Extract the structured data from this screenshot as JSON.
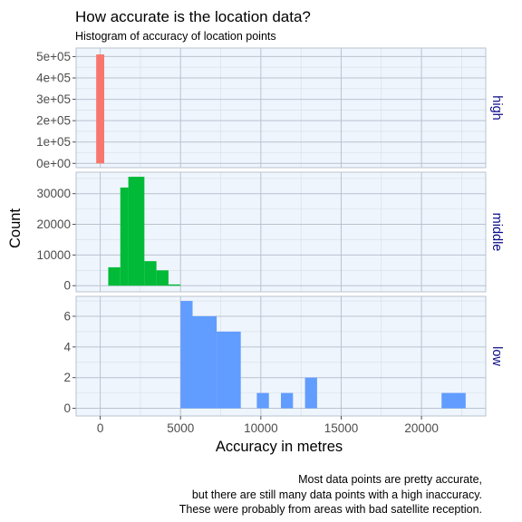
{
  "chart_data": {
    "type": "bar",
    "title": "How accurate is the location data?",
    "subtitle": "Histogram of accuracy of location points",
    "xlabel": "Accuracy in metres",
    "ylabel": "Count",
    "caption": [
      "Most data points are pretty accurate,",
      "but there are still many data points with a high inaccuracy.",
      "These were probably from areas with bad satellite reception."
    ],
    "xlim": [
      -1500,
      24000
    ],
    "x_ticks": [
      0,
      5000,
      10000,
      15000,
      20000
    ],
    "x_tick_labels": [
      "0",
      "5000",
      "10000",
      "15000",
      "20000"
    ],
    "bin_width": 500,
    "grid": true,
    "facets": [
      {
        "strip": "high",
        "color": "#F8766D",
        "ylim": [
          -20000,
          540000
        ],
        "y_ticks": [
          0,
          100000,
          200000,
          300000,
          400000,
          500000
        ],
        "y_tick_labels": [
          "0e+00",
          "1e+05",
          "2e+05",
          "3e+05",
          "4e+05",
          "5e+05"
        ],
        "bins": [
          {
            "x0": -250,
            "x1": 250,
            "count": 510000
          }
        ]
      },
      {
        "strip": "middle",
        "color": "#00BA38",
        "ylim": [
          -2000,
          37000
        ],
        "y_ticks": [
          0,
          10000,
          20000,
          30000
        ],
        "y_tick_labels": [
          "0",
          "10000",
          "20000",
          "30000"
        ],
        "bins": [
          {
            "x0": 500,
            "x1": 1250,
            "count": 6000
          },
          {
            "x0": 1250,
            "x1": 1750,
            "count": 32000
          },
          {
            "x0": 1750,
            "x1": 2750,
            "count": 35500
          },
          {
            "x0": 2750,
            "x1": 3500,
            "count": 8000
          },
          {
            "x0": 3500,
            "x1": 4250,
            "count": 5000
          },
          {
            "x0": 4250,
            "x1": 5000,
            "count": 400
          }
        ]
      },
      {
        "strip": "low",
        "color": "#619CFF",
        "ylim": [
          -0.5,
          7.3
        ],
        "y_ticks": [
          0,
          2,
          4,
          6
        ],
        "y_tick_labels": [
          "0",
          "2",
          "4",
          "6"
        ],
        "bins": [
          {
            "x0": 5000,
            "x1": 5750,
            "count": 7
          },
          {
            "x0": 5750,
            "x1": 7250,
            "count": 6
          },
          {
            "x0": 7250,
            "x1": 8750,
            "count": 5
          },
          {
            "x0": 9750,
            "x1": 10500,
            "count": 1
          },
          {
            "x0": 11250,
            "x1": 12000,
            "count": 1
          },
          {
            "x0": 12750,
            "x1": 13500,
            "count": 2
          },
          {
            "x0": 21250,
            "x1": 22750,
            "count": 1
          }
        ]
      }
    ]
  }
}
